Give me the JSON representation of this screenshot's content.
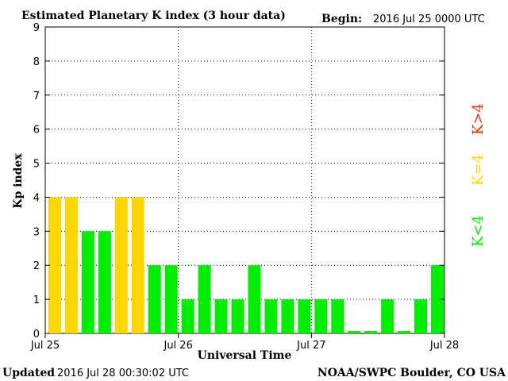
{
  "header": {
    "title": "Estimated Planetary K index (3 hour data)",
    "begin_label": "Begin:",
    "begin_value": "2016 Jul 25 0000 UTC"
  },
  "footer": {
    "updated_label": "Updated",
    "updated_value": "2016 Jul 28 00:30:02 UTC",
    "source": "NOAA/SWPC Boulder, CO USA"
  },
  "legend": {
    "high": {
      "label": "K>4",
      "color": "#ff2a00"
    },
    "mid": {
      "label": "K=4",
      "color": "#ffd700"
    },
    "low": {
      "label": "K<4",
      "color": "#00ee00"
    }
  },
  "chart_data": {
    "type": "bar",
    "title": "Estimated Planetary K index (3 hour data)",
    "xlabel": "Universal Time",
    "ylabel": "Kp index",
    "ylim": [
      0,
      9
    ],
    "yticks": [
      0,
      1,
      2,
      3,
      4,
      5,
      6,
      7,
      8,
      9
    ],
    "xticks": [
      "Jul 25",
      "Jul 26",
      "Jul 27",
      "Jul 28"
    ],
    "grid": true,
    "bar_interval_hours": 3,
    "values": [
      4,
      4,
      3,
      3,
      4,
      4,
      2,
      2,
      1,
      2,
      1,
      1,
      2,
      1,
      1,
      1,
      1,
      1,
      0.07,
      0.07,
      1,
      0.07,
      1,
      2
    ],
    "colors": {
      "high": "#ff2a00",
      "mid": "#ffd700",
      "low": "#00ee00"
    }
  }
}
